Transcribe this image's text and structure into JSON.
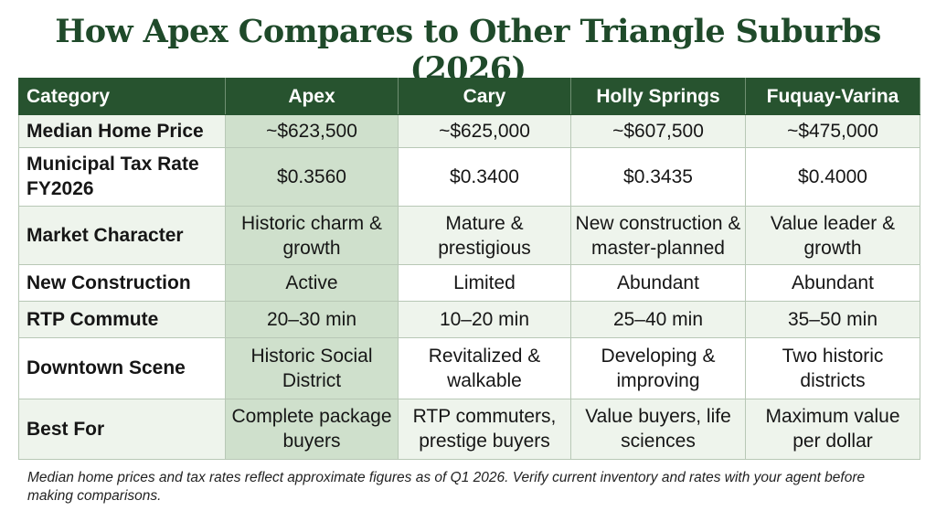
{
  "title": "How Apex Compares to Other Triangle Suburbs (2026)",
  "table": {
    "headers": [
      "Category",
      "Apex",
      "Cary",
      "Holly Springs",
      "Fuquay-Varina"
    ],
    "rows": [
      {
        "category": "Median Home Price",
        "cells": [
          "~$623,500",
          "~$625,000",
          "~$607,500",
          "~$475,000"
        ]
      },
      {
        "category": "Municipal Tax Rate FY2026",
        "cells": [
          "$0.3560",
          "$0.3400",
          "$0.3435",
          "$0.4000"
        ]
      },
      {
        "category": "Market Character",
        "cells": [
          "Historic charm & growth",
          "Mature & prestigious",
          "New construction & master-planned",
          "Value leader & growth"
        ]
      },
      {
        "category": "New Construction",
        "cells": [
          "Active",
          "Limited",
          "Abundant",
          "Abundant"
        ]
      },
      {
        "category": "RTP Commute",
        "cells": [
          "20–30 min",
          "10–20 min",
          "25–40 min",
          "35–50 min"
        ]
      },
      {
        "category": "Downtown Scene",
        "cells": [
          "Historic Social District",
          "Revitalized & walkable",
          "Developing & improving",
          "Two historic districts"
        ]
      },
      {
        "category": "Best For",
        "cells": [
          "Complete package buyers",
          "RTP commuters, prestige buyers",
          "Value buyers, life sciences",
          "Maximum value per dollar"
        ]
      }
    ]
  },
  "footnote": "Median home prices and tax rates reflect approximate figures as of Q1 2026. Verify current inventory and rates with your agent before making comparisons.",
  "colors": {
    "title": "#1f4a2a",
    "header_bg": "#27532f",
    "apex_column_bg": "#cfe0cc",
    "row_alt_bg": "#eef4ec"
  }
}
